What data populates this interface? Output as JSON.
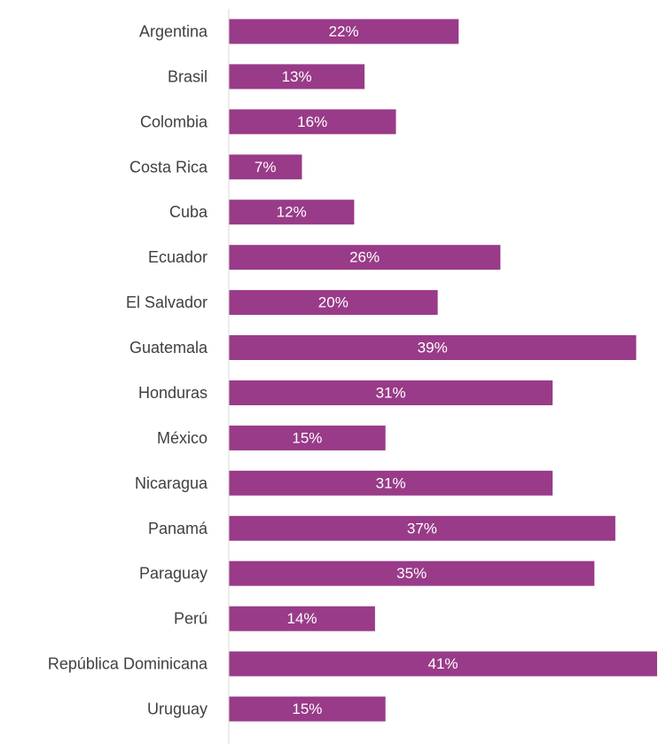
{
  "chart_data": {
    "type": "bar",
    "orientation": "horizontal",
    "categories": [
      "Argentina",
      "Brasil",
      "Colombia",
      "Costa Rica",
      "Cuba",
      "Ecuador",
      "El Salvador",
      "Guatemala",
      "Honduras",
      "México",
      "Nicaragua",
      "Panamá",
      "Paraguay",
      "Perú",
      "República Dominicana",
      "Uruguay"
    ],
    "values": [
      22,
      13,
      16,
      7,
      12,
      26,
      20,
      39,
      31,
      15,
      31,
      37,
      35,
      14,
      41,
      15
    ],
    "data_labels": [
      "22%",
      "13%",
      "16%",
      "7%",
      "12%",
      "26%",
      "20%",
      "39%",
      "31%",
      "15%",
      "31%",
      "37%",
      "35%",
      "14%",
      "41%",
      "15%"
    ],
    "unit": "%",
    "title": "",
    "xlabel": "",
    "ylabel": "",
    "xlim": [
      0,
      41
    ],
    "grid": false,
    "legend": "none",
    "colors": {
      "bar": "#993b88",
      "axis": "#d9d9d9",
      "label": "#404040",
      "data_label": "#ffffff"
    }
  }
}
